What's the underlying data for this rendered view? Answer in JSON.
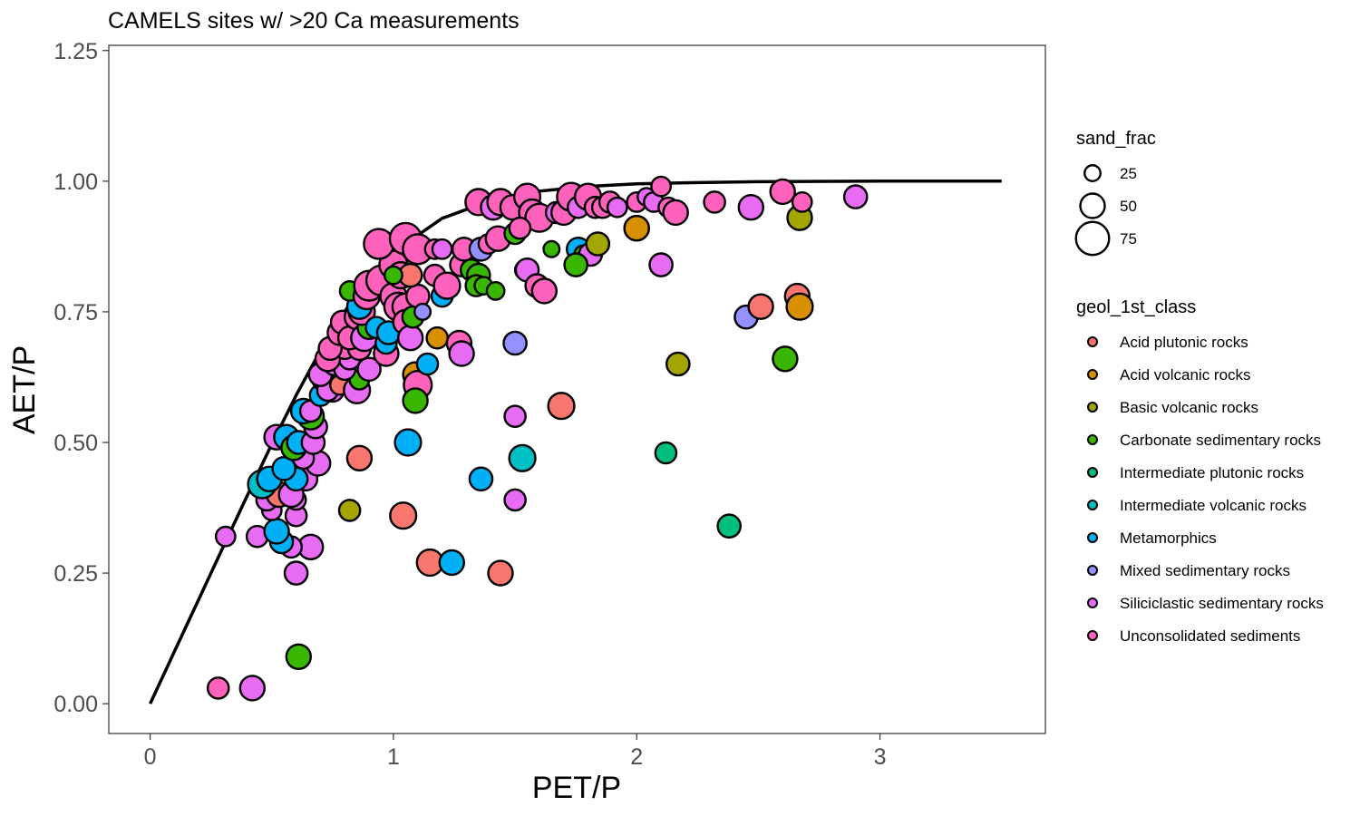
{
  "chart_data": {
    "type": "scatter",
    "title": "CAMELS sites w/ >20 Ca measurements",
    "xlabel": "PET/P",
    "ylabel": "AET/P",
    "xlim": [
      -0.17,
      3.68
    ],
    "ylim": [
      -0.057,
      1.26
    ],
    "xticks": [
      0,
      1,
      2,
      3
    ],
    "xtick_labels": [
      "0",
      "1",
      "2",
      "3"
    ],
    "yticks": [
      0,
      0.25,
      0.5,
      0.75,
      1.0,
      1.25
    ],
    "ytick_labels": [
      "0.00",
      "0.25",
      "0.50",
      "0.75",
      "1.00",
      "1.25"
    ],
    "grid": false,
    "legend_placement": "right",
    "curve": {
      "name": "Budyko curve",
      "x": [
        0,
        0.1,
        0.2,
        0.3,
        0.4,
        0.5,
        0.6,
        0.7,
        0.8,
        0.9,
        1.0,
        1.2,
        1.4,
        1.6,
        1.8,
        2.0,
        2.2,
        2.5,
        3.0,
        3.5
      ],
      "y": [
        0,
        0.1,
        0.2,
        0.3,
        0.399,
        0.497,
        0.59,
        0.676,
        0.751,
        0.814,
        0.864,
        0.929,
        0.963,
        0.981,
        0.99,
        0.995,
        0.997,
        0.999,
        1.0,
        1.0
      ]
    },
    "size_legend": {
      "title": "sand_frac",
      "entries": [
        {
          "label": "25",
          "value": 25
        },
        {
          "label": "50",
          "value": 50
        },
        {
          "label": "75",
          "value": 75
        }
      ]
    },
    "color_legend": {
      "title": "geol_1st_class",
      "entries": [
        {
          "label": "Acid plutonic rocks",
          "color": "#F8766D"
        },
        {
          "label": "Acid volcanic rocks",
          "color": "#D89000"
        },
        {
          "label": "Basic volcanic rocks",
          "color": "#A3A500"
        },
        {
          "label": "Carbonate sedimentary rocks",
          "color": "#39B600"
        },
        {
          "label": "Intermediate plutonic rocks",
          "color": "#00BF7D"
        },
        {
          "label": "Intermediate volcanic rocks",
          "color": "#00BFC4"
        },
        {
          "label": "Metamorphics",
          "color": "#00B0F6"
        },
        {
          "label": "Mixed sedimentary rocks",
          "color": "#9590FF"
        },
        {
          "label": "Siliciclastic sedimentary rocks",
          "color": "#E76BF3"
        },
        {
          "label": "Unconsolidated sediments",
          "color": "#FF62BC"
        }
      ]
    },
    "points": [
      {
        "x": 0.28,
        "y": 0.03,
        "g": 9,
        "s": 40
      },
      {
        "x": 0.42,
        "y": 0.03,
        "g": 8,
        "s": 50
      },
      {
        "x": 0.61,
        "y": 0.09,
        "g": 3,
        "s": 50
      },
      {
        "x": 0.31,
        "y": 0.32,
        "g": 8,
        "s": 35
      },
      {
        "x": 0.44,
        "y": 0.32,
        "g": 8,
        "s": 40
      },
      {
        "x": 0.6,
        "y": 0.25,
        "g": 8,
        "s": 45
      },
      {
        "x": 0.66,
        "y": 0.3,
        "g": 8,
        "s": 50
      },
      {
        "x": 0.58,
        "y": 0.3,
        "g": 8,
        "s": 40
      },
      {
        "x": 0.54,
        "y": 0.31,
        "g": 6,
        "s": 45
      },
      {
        "x": 0.52,
        "y": 0.33,
        "g": 6,
        "s": 50
      },
      {
        "x": 0.6,
        "y": 0.36,
        "g": 8,
        "s": 40
      },
      {
        "x": 0.5,
        "y": 0.37,
        "g": 8,
        "s": 35
      },
      {
        "x": 0.48,
        "y": 0.39,
        "g": 8,
        "s": 40
      },
      {
        "x": 0.6,
        "y": 0.39,
        "g": 8,
        "s": 35
      },
      {
        "x": 0.53,
        "y": 0.4,
        "g": 0,
        "s": 50
      },
      {
        "x": 0.58,
        "y": 0.4,
        "g": 8,
        "s": 50
      },
      {
        "x": 0.46,
        "y": 0.42,
        "g": 5,
        "s": 60
      },
      {
        "x": 0.49,
        "y": 0.43,
        "g": 6,
        "s": 50
      },
      {
        "x": 0.64,
        "y": 0.43,
        "g": 8,
        "s": 45
      },
      {
        "x": 0.6,
        "y": 0.43,
        "g": 6,
        "s": 45
      },
      {
        "x": 0.55,
        "y": 0.45,
        "g": 6,
        "s": 45
      },
      {
        "x": 0.69,
        "y": 0.46,
        "g": 8,
        "s": 50
      },
      {
        "x": 0.63,
        "y": 0.47,
        "g": 8,
        "s": 40
      },
      {
        "x": 0.52,
        "y": 0.51,
        "g": 8,
        "s": 50
      },
      {
        "x": 0.56,
        "y": 0.51,
        "g": 6,
        "s": 50
      },
      {
        "x": 0.59,
        "y": 0.49,
        "g": 3,
        "s": 50
      },
      {
        "x": 0.61,
        "y": 0.5,
        "g": 6,
        "s": 45
      },
      {
        "x": 0.67,
        "y": 0.5,
        "g": 8,
        "s": 45
      },
      {
        "x": 0.68,
        "y": 0.53,
        "g": 8,
        "s": 45
      },
      {
        "x": 0.66,
        "y": 0.55,
        "g": 3,
        "s": 55
      },
      {
        "x": 0.63,
        "y": 0.56,
        "g": 6,
        "s": 50
      },
      {
        "x": 0.66,
        "y": 0.56,
        "g": 8,
        "s": 40
      },
      {
        "x": 0.7,
        "y": 0.59,
        "g": 6,
        "s": 40
      },
      {
        "x": 0.75,
        "y": 0.6,
        "g": 8,
        "s": 45
      },
      {
        "x": 0.71,
        "y": 0.62,
        "g": 3,
        "s": 40
      },
      {
        "x": 0.73,
        "y": 0.6,
        "g": 8,
        "s": 40
      },
      {
        "x": 0.78,
        "y": 0.61,
        "g": 0,
        "s": 35
      },
      {
        "x": 0.85,
        "y": 0.6,
        "g": 8,
        "s": 55
      },
      {
        "x": 0.86,
        "y": 0.62,
        "g": 3,
        "s": 35
      },
      {
        "x": 0.7,
        "y": 0.63,
        "g": 8,
        "s": 45
      },
      {
        "x": 0.76,
        "y": 0.65,
        "g": 8,
        "s": 45
      },
      {
        "x": 0.8,
        "y": 0.64,
        "g": 8,
        "s": 40
      },
      {
        "x": 0.82,
        "y": 0.66,
        "g": 8,
        "s": 40
      },
      {
        "x": 0.9,
        "y": 0.64,
        "g": 8,
        "s": 45
      },
      {
        "x": 0.73,
        "y": 0.66,
        "g": 9,
        "s": 50
      },
      {
        "x": 0.8,
        "y": 0.68,
        "g": 9,
        "s": 40
      },
      {
        "x": 0.86,
        "y": 0.68,
        "g": 9,
        "s": 45
      },
      {
        "x": 0.74,
        "y": 0.68,
        "g": 9,
        "s": 45
      },
      {
        "x": 0.78,
        "y": 0.71,
        "g": 9,
        "s": 50
      },
      {
        "x": 0.79,
        "y": 0.73,
        "g": 9,
        "s": 45
      },
      {
        "x": 0.82,
        "y": 0.7,
        "g": 9,
        "s": 45
      },
      {
        "x": 0.85,
        "y": 0.74,
        "g": 9,
        "s": 50
      },
      {
        "x": 0.88,
        "y": 0.7,
        "g": 8,
        "s": 55
      },
      {
        "x": 0.9,
        "y": 0.72,
        "g": 3,
        "s": 45
      },
      {
        "x": 0.87,
        "y": 0.75,
        "g": 9,
        "s": 55
      },
      {
        "x": 0.86,
        "y": 0.76,
        "g": 6,
        "s": 50
      },
      {
        "x": 0.93,
        "y": 0.72,
        "g": 6,
        "s": 40
      },
      {
        "x": 0.97,
        "y": 0.67,
        "g": 9,
        "s": 50
      },
      {
        "x": 0.97,
        "y": 0.69,
        "g": 6,
        "s": 40
      },
      {
        "x": 0.98,
        "y": 0.71,
        "g": 6,
        "s": 45
      },
      {
        "x": 0.82,
        "y": 0.79,
        "g": 3,
        "s": 35
      },
      {
        "x": 0.89,
        "y": 0.78,
        "g": 9,
        "s": 55
      },
      {
        "x": 0.9,
        "y": 0.8,
        "g": 9,
        "s": 65
      },
      {
        "x": 0.95,
        "y": 0.81,
        "g": 9,
        "s": 65
      },
      {
        "x": 1.0,
        "y": 0.78,
        "g": 9,
        "s": 55
      },
      {
        "x": 1.02,
        "y": 0.76,
        "g": 9,
        "s": 60
      },
      {
        "x": 1.05,
        "y": 0.76,
        "g": 9,
        "s": 55
      },
      {
        "x": 1.05,
        "y": 0.73,
        "g": 9,
        "s": 50
      },
      {
        "x": 1.07,
        "y": 0.7,
        "g": 8,
        "s": 50
      },
      {
        "x": 1.08,
        "y": 0.74,
        "g": 3,
        "s": 40
      },
      {
        "x": 1.1,
        "y": 0.78,
        "g": 9,
        "s": 45
      },
      {
        "x": 1.12,
        "y": 0.75,
        "g": 7,
        "s": 25
      },
      {
        "x": 1.0,
        "y": 0.84,
        "g": 9,
        "s": 60
      },
      {
        "x": 1.03,
        "y": 0.82,
        "g": 9,
        "s": 55
      },
      {
        "x": 1.07,
        "y": 0.82,
        "g": 0,
        "s": 45
      },
      {
        "x": 0.94,
        "y": 0.88,
        "g": 9,
        "s": 65
      },
      {
        "x": 1.05,
        "y": 0.89,
        "g": 9,
        "s": 70
      },
      {
        "x": 1.1,
        "y": 0.87,
        "g": 9,
        "s": 65
      },
      {
        "x": 1.0,
        "y": 0.82,
        "g": 3,
        "s": 30
      },
      {
        "x": 1.09,
        "y": 0.63,
        "g": 1,
        "s": 50
      },
      {
        "x": 1.1,
        "y": 0.61,
        "g": 9,
        "s": 60
      },
      {
        "x": 1.09,
        "y": 0.58,
        "g": 3,
        "s": 50
      },
      {
        "x": 1.14,
        "y": 0.65,
        "g": 6,
        "s": 40
      },
      {
        "x": 1.18,
        "y": 0.7,
        "g": 1,
        "s": 40
      },
      {
        "x": 1.06,
        "y": 0.5,
        "g": 6,
        "s": 55
      },
      {
        "x": 0.86,
        "y": 0.47,
        "g": 0,
        "s": 50
      },
      {
        "x": 0.82,
        "y": 0.37,
        "g": 2,
        "s": 40
      },
      {
        "x": 1.04,
        "y": 0.36,
        "g": 0,
        "s": 55
      },
      {
        "x": 1.15,
        "y": 0.27,
        "g": 0,
        "s": 55
      },
      {
        "x": 1.24,
        "y": 0.27,
        "g": 6,
        "s": 50
      },
      {
        "x": 1.44,
        "y": 0.25,
        "g": 0,
        "s": 50
      },
      {
        "x": 1.36,
        "y": 0.43,
        "g": 6,
        "s": 45
      },
      {
        "x": 1.5,
        "y": 0.39,
        "g": 8,
        "s": 40
      },
      {
        "x": 1.5,
        "y": 0.55,
        "g": 8,
        "s": 40
      },
      {
        "x": 1.53,
        "y": 0.47,
        "g": 5,
        "s": 55
      },
      {
        "x": 1.5,
        "y": 0.69,
        "g": 7,
        "s": 45
      },
      {
        "x": 1.69,
        "y": 0.57,
        "g": 0,
        "s": 55
      },
      {
        "x": 1.17,
        "y": 0.82,
        "g": 9,
        "s": 40
      },
      {
        "x": 1.2,
        "y": 0.78,
        "g": 6,
        "s": 40
      },
      {
        "x": 1.22,
        "y": 0.8,
        "g": 9,
        "s": 55
      },
      {
        "x": 1.17,
        "y": 0.87,
        "g": 9,
        "s": 35
      },
      {
        "x": 1.2,
        "y": 0.87,
        "g": 8,
        "s": 35
      },
      {
        "x": 1.27,
        "y": 0.69,
        "g": 9,
        "s": 50
      },
      {
        "x": 1.28,
        "y": 0.67,
        "g": 8,
        "s": 50
      },
      {
        "x": 1.28,
        "y": 0.84,
        "g": 9,
        "s": 45
      },
      {
        "x": 1.29,
        "y": 0.87,
        "g": 9,
        "s": 45
      },
      {
        "x": 1.32,
        "y": 0.83,
        "g": 3,
        "s": 40
      },
      {
        "x": 1.35,
        "y": 0.82,
        "g": 3,
        "s": 45
      },
      {
        "x": 1.34,
        "y": 0.8,
        "g": 3,
        "s": 40
      },
      {
        "x": 1.37,
        "y": 0.8,
        "g": 3,
        "s": 30
      },
      {
        "x": 1.42,
        "y": 0.79,
        "g": 3,
        "s": 30
      },
      {
        "x": 1.36,
        "y": 0.87,
        "g": 7,
        "s": 45
      },
      {
        "x": 1.39,
        "y": 0.88,
        "g": 9,
        "s": 35
      },
      {
        "x": 1.43,
        "y": 0.89,
        "g": 9,
        "s": 50
      },
      {
        "x": 1.35,
        "y": 0.96,
        "g": 9,
        "s": 55
      },
      {
        "x": 1.41,
        "y": 0.95,
        "g": 8,
        "s": 50
      },
      {
        "x": 1.44,
        "y": 0.96,
        "g": 9,
        "s": 55
      },
      {
        "x": 1.49,
        "y": 0.95,
        "g": 9,
        "s": 50
      },
      {
        "x": 1.55,
        "y": 0.97,
        "g": 9,
        "s": 55
      },
      {
        "x": 1.57,
        "y": 0.94,
        "g": 9,
        "s": 55
      },
      {
        "x": 1.6,
        "y": 0.93,
        "g": 9,
        "s": 60
      },
      {
        "x": 1.5,
        "y": 0.9,
        "g": 3,
        "s": 40
      },
      {
        "x": 1.52,
        "y": 0.91,
        "g": 9,
        "s": 40
      },
      {
        "x": 1.54,
        "y": 0.83,
        "g": 3,
        "s": 35
      },
      {
        "x": 1.55,
        "y": 0.83,
        "g": 8,
        "s": 45
      },
      {
        "x": 1.59,
        "y": 0.8,
        "g": 9,
        "s": 45
      },
      {
        "x": 1.62,
        "y": 0.79,
        "g": 9,
        "s": 50
      },
      {
        "x": 1.65,
        "y": 0.87,
        "g": 3,
        "s": 25
      },
      {
        "x": 1.67,
        "y": 0.94,
        "g": 8,
        "s": 40
      },
      {
        "x": 1.7,
        "y": 0.94,
        "g": 9,
        "s": 50
      },
      {
        "x": 1.73,
        "y": 0.97,
        "g": 9,
        "s": 60
      },
      {
        "x": 1.76,
        "y": 0.95,
        "g": 8,
        "s": 40
      },
      {
        "x": 1.8,
        "y": 0.97,
        "g": 9,
        "s": 55
      },
      {
        "x": 1.83,
        "y": 0.95,
        "g": 9,
        "s": 40
      },
      {
        "x": 1.86,
        "y": 0.95,
        "g": 9,
        "s": 40
      },
      {
        "x": 1.89,
        "y": 0.96,
        "g": 9,
        "s": 40
      },
      {
        "x": 1.92,
        "y": 0.95,
        "g": 8,
        "s": 35
      },
      {
        "x": 1.76,
        "y": 0.87,
        "g": 6,
        "s": 45
      },
      {
        "x": 1.78,
        "y": 0.86,
        "g": 3,
        "s": 30
      },
      {
        "x": 1.81,
        "y": 0.86,
        "g": 8,
        "s": 45
      },
      {
        "x": 1.84,
        "y": 0.88,
        "g": 2,
        "s": 45
      },
      {
        "x": 1.75,
        "y": 0.84,
        "g": 3,
        "s": 45
      },
      {
        "x": 2.0,
        "y": 0.91,
        "g": 2,
        "s": 50
      },
      {
        "x": 2.0,
        "y": 0.91,
        "g": 1,
        "s": 50
      },
      {
        "x": 2.0,
        "y": 0.96,
        "g": 9,
        "s": 35
      },
      {
        "x": 2.04,
        "y": 0.97,
        "g": 8,
        "s": 30
      },
      {
        "x": 2.07,
        "y": 0.96,
        "g": 8,
        "s": 35
      },
      {
        "x": 2.1,
        "y": 0.99,
        "g": 9,
        "s": 35
      },
      {
        "x": 2.13,
        "y": 0.95,
        "g": 9,
        "s": 35
      },
      {
        "x": 2.16,
        "y": 0.94,
        "g": 9,
        "s": 50
      },
      {
        "x": 2.1,
        "y": 0.84,
        "g": 8,
        "s": 45
      },
      {
        "x": 2.17,
        "y": 0.65,
        "g": 2,
        "s": 45
      },
      {
        "x": 2.12,
        "y": 0.48,
        "g": 4,
        "s": 40
      },
      {
        "x": 2.32,
        "y": 0.96,
        "g": 9,
        "s": 40
      },
      {
        "x": 2.38,
        "y": 0.34,
        "g": 4,
        "s": 45
      },
      {
        "x": 2.45,
        "y": 0.74,
        "g": 7,
        "s": 45
      },
      {
        "x": 2.47,
        "y": 0.95,
        "g": 8,
        "s": 50
      },
      {
        "x": 2.51,
        "y": 0.76,
        "g": 0,
        "s": 50
      },
      {
        "x": 2.6,
        "y": 0.98,
        "g": 9,
        "s": 50
      },
      {
        "x": 2.61,
        "y": 0.66,
        "g": 3,
        "s": 50
      },
      {
        "x": 2.66,
        "y": 0.78,
        "g": 0,
        "s": 50
      },
      {
        "x": 2.67,
        "y": 0.93,
        "g": 2,
        "s": 50
      },
      {
        "x": 2.67,
        "y": 0.76,
        "g": 1,
        "s": 55
      },
      {
        "x": 2.68,
        "y": 0.96,
        "g": 9,
        "s": 35
      },
      {
        "x": 2.9,
        "y": 0.97,
        "g": 8,
        "s": 45
      }
    ]
  }
}
